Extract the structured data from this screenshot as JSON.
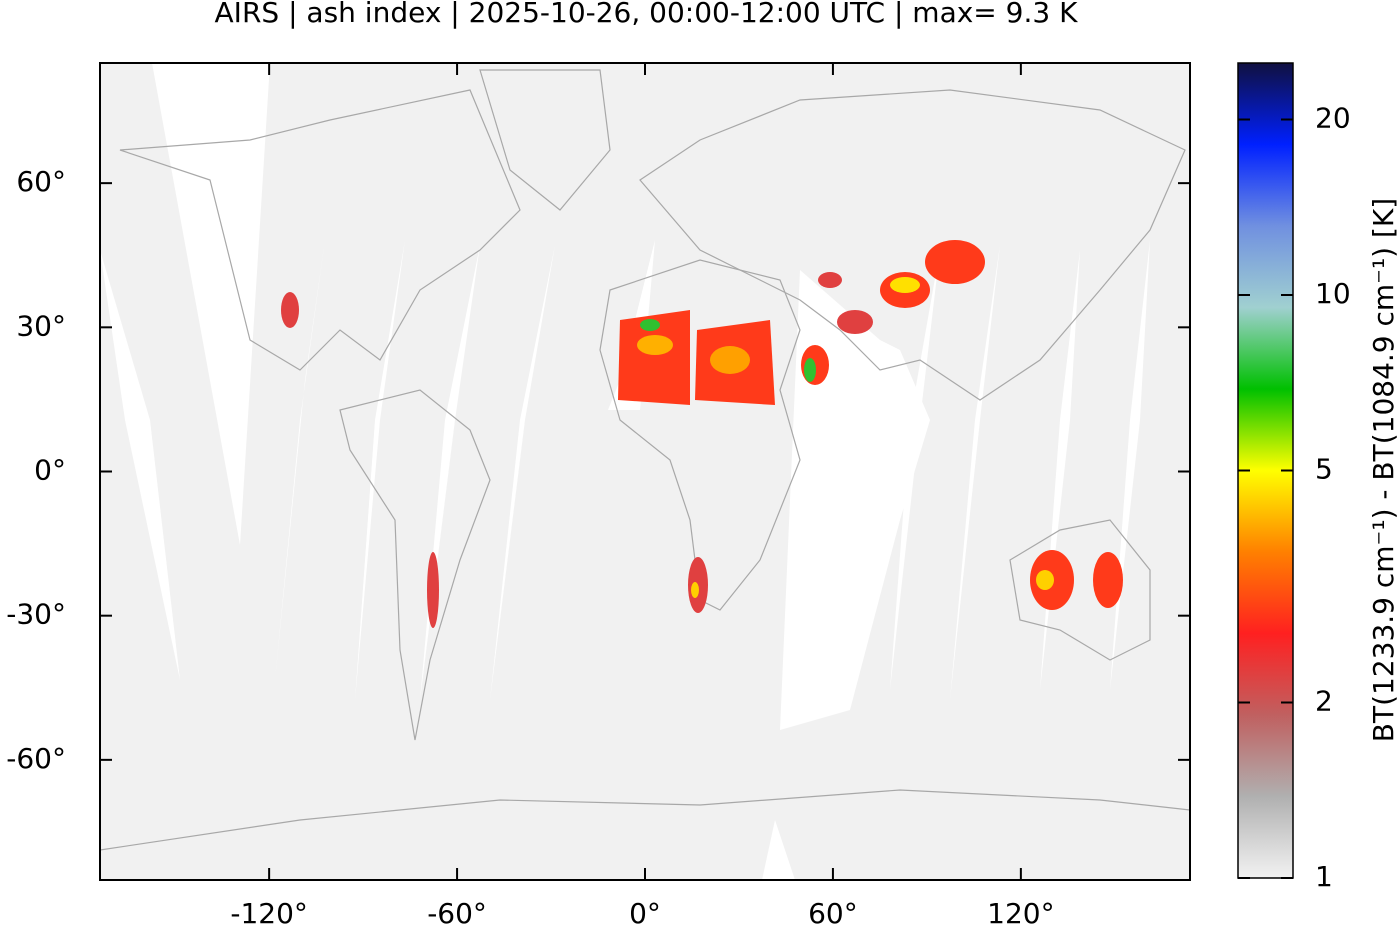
{
  "chart_data": {
    "type": "map",
    "title": "AIRS | ash index | 2025-10-26, 00:00-12:00 UTC | max= 9.3 K",
    "xlim": [
      -174,
      174
    ],
    "ylim": [
      -85,
      85
    ],
    "xticks": [
      {
        "value": -120,
        "label": "-120°"
      },
      {
        "value": -60,
        "label": "-60°"
      },
      {
        "value": 0,
        "label": "0°"
      },
      {
        "value": 60,
        "label": "60°"
      },
      {
        "value": 120,
        "label": "120°"
      }
    ],
    "yticks": [
      {
        "value": 60,
        "label": "60°"
      },
      {
        "value": 30,
        "label": "30°"
      },
      {
        "value": 0,
        "label": "0°"
      },
      {
        "value": -30,
        "label": "-30°"
      },
      {
        "value": -60,
        "label": "-60°"
      }
    ],
    "colorbar": {
      "label": "BT(1233.9 cm⁻¹) - BT(1084.9 cm⁻¹) [K]",
      "log": true,
      "lim": [
        1,
        25
      ],
      "ticks": [
        1,
        2,
        5,
        10,
        20
      ],
      "colormap": [
        "#f2f2f2",
        "#b0b0b0",
        "#c06060",
        "#ff2020",
        "#ff8000",
        "#ffff00",
        "#00c000",
        "#a0d0d0",
        "#7090e0",
        "#0020ff",
        "#101040"
      ]
    }
  }
}
